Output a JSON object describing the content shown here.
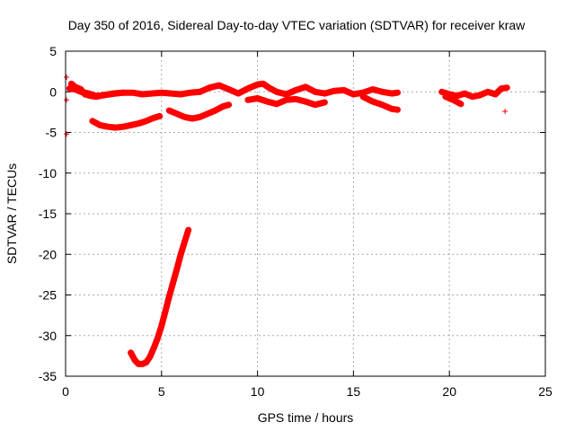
{
  "chart_data": {
    "type": "scatter",
    "title": "Day 350 of 2016, Sidereal Day-to-day VTEC variation (SDTVAR) for receiver kraw",
    "xlabel": "GPS time / hours",
    "ylabel": "SDTVAR / TECUs",
    "xlim": [
      0,
      25
    ],
    "ylim": [
      -35,
      5
    ],
    "xticks": [
      0,
      5,
      10,
      15,
      20,
      25
    ],
    "yticks": [
      5,
      0,
      -5,
      -10,
      -15,
      -20,
      -25,
      -30,
      -35
    ],
    "xtick_labels": [
      "0",
      "5",
      "10",
      "15",
      "20",
      "25"
    ],
    "ytick_labels": [
      "5",
      "0",
      "-5",
      "-10",
      "-15",
      "-20",
      "-25",
      "-30",
      "-35"
    ],
    "grid": true,
    "marker": "+",
    "color": "#ff0000",
    "series": [
      {
        "name": "arc-main-early",
        "x": [
          0.2,
          0.5,
          0.8,
          1.2,
          1.6,
          2.0,
          2.5,
          3.0,
          3.5,
          4.0,
          4.5,
          5.0,
          5.5,
          6.0,
          6.5,
          7.0
        ],
        "y": [
          0.4,
          0.3,
          0.0,
          -0.2,
          -0.5,
          -0.4,
          -0.2,
          -0.1,
          -0.1,
          -0.3,
          -0.2,
          -0.1,
          -0.2,
          -0.3,
          -0.1,
          0.0
        ]
      },
      {
        "name": "arc-main-late",
        "x": [
          7.0,
          7.5,
          8.0,
          8.5,
          9.0,
          9.5,
          10.0,
          10.3,
          10.6,
          11.0,
          11.5,
          12.0,
          12.5,
          13.0,
          13.5,
          14.0,
          14.5,
          15.0,
          15.5,
          16.0,
          16.5,
          17.0,
          17.3
        ],
        "y": [
          0.0,
          0.5,
          0.8,
          0.3,
          -0.2,
          0.4,
          0.9,
          1.0,
          0.5,
          0.0,
          -0.3,
          0.2,
          0.6,
          0.0,
          -0.2,
          0.1,
          0.2,
          -0.3,
          -0.1,
          0.3,
          0.0,
          -0.2,
          -0.1
        ]
      },
      {
        "name": "arc-early-b",
        "x": [
          0.3,
          0.5,
          0.8,
          1.0,
          1.3,
          1.6,
          2.0,
          2.3,
          2.6,
          3.0
        ],
        "y": [
          1.0,
          0.6,
          0.3,
          -0.3,
          -0.5,
          -0.6,
          -0.4,
          -0.3,
          -0.2,
          -0.1
        ]
      },
      {
        "name": "arc-mid-low",
        "x": [
          9.5,
          10.0,
          10.5,
          11.0,
          11.5,
          12.0,
          12.5,
          13.0,
          13.5
        ],
        "y": [
          -1.0,
          -0.8,
          -1.2,
          -1.5,
          -1.0,
          -0.9,
          -1.2,
          -1.6,
          -1.3
        ]
      },
      {
        "name": "arc-late-low",
        "x": [
          15.5,
          16.0,
          16.5,
          17.0,
          17.3
        ],
        "y": [
          -0.6,
          -1.2,
          -1.6,
          -2.1,
          -2.2
        ]
      },
      {
        "name": "arc-negative-4",
        "x": [
          1.4,
          1.8,
          2.2,
          2.6,
          3.0,
          3.4,
          3.8,
          4.2,
          4.6,
          4.9
        ],
        "y": [
          -3.6,
          -4.1,
          -4.3,
          -4.4,
          -4.3,
          -4.1,
          -3.9,
          -3.6,
          -3.2,
          -3.0
        ]
      },
      {
        "name": "arc-negative-2",
        "x": [
          5.4,
          5.8,
          6.2,
          6.6,
          7.0,
          7.4,
          7.8,
          8.2,
          8.5
        ],
        "y": [
          -2.3,
          -2.7,
          -3.1,
          -3.3,
          -3.1,
          -2.7,
          -2.3,
          -1.8,
          -1.6
        ]
      },
      {
        "name": "arc-steep",
        "x": [
          3.4,
          3.6,
          3.8,
          4.0,
          4.2,
          4.4,
          4.6,
          4.8,
          5.0,
          5.2,
          5.4,
          5.6,
          5.8,
          6.0,
          6.2,
          6.4
        ],
        "y": [
          -32.1,
          -33.0,
          -33.5,
          -33.5,
          -33.3,
          -32.6,
          -31.5,
          -30.3,
          -28.8,
          -27.0,
          -25.2,
          -23.5,
          -21.8,
          -20.0,
          -18.5,
          -17.0
        ]
      },
      {
        "name": "arc-late-evening",
        "x": [
          19.6,
          20.0,
          20.4,
          20.8,
          21.2,
          21.6,
          22.0,
          22.4,
          22.7,
          23.0
        ],
        "y": [
          0.0,
          -0.3,
          -0.5,
          -0.2,
          -0.6,
          -0.4,
          0.0,
          -0.3,
          0.4,
          0.5
        ]
      },
      {
        "name": "arc-late-evening-b",
        "x": [
          19.8,
          20.2,
          20.6
        ],
        "y": [
          -0.6,
          -1.0,
          -1.5
        ]
      },
      {
        "name": "isolated",
        "x": [
          0.05,
          0.05,
          0.05,
          22.9
        ],
        "y": [
          1.8,
          -1.0,
          -5.2,
          -2.4
        ]
      }
    ]
  }
}
